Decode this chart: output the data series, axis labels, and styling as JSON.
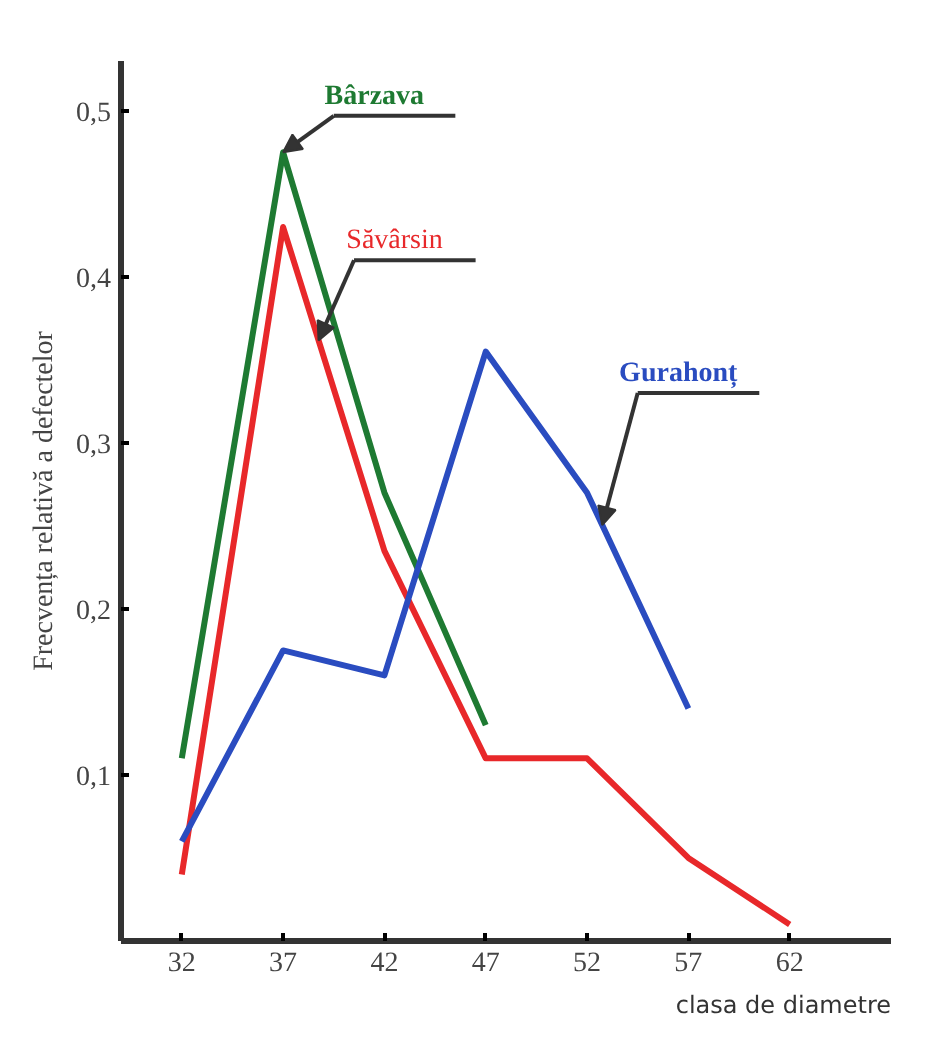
{
  "chart_data": {
    "type": "line",
    "xlabel": "clasa de diametre",
    "ylabel": "Frecvența relativă a defectelor",
    "x": [
      32,
      37,
      42,
      47,
      52,
      57,
      62
    ],
    "series": [
      {
        "name": "Bârzava",
        "color": "#1e7a32",
        "values": [
          0.11,
          0.475,
          0.27,
          0.13,
          null,
          null,
          null
        ]
      },
      {
        "name": "Săvârsin",
        "color": "#e8282a",
        "values": [
          0.04,
          0.43,
          0.235,
          0.11,
          0.11,
          0.05,
          0.01
        ]
      },
      {
        "name": "Gurahonț",
        "color": "#2a4cc0",
        "values": [
          0.06,
          0.175,
          0.16,
          0.355,
          0.27,
          0.14,
          null
        ]
      }
    ],
    "xlim": [
      29,
      67
    ],
    "ylim": [
      0,
      0.53
    ],
    "xticks": [
      32,
      37,
      42,
      47,
      52,
      57,
      62
    ],
    "yticks": [
      {
        "value": 0.1,
        "label": "0,1"
      },
      {
        "value": 0.2,
        "label": "0,2"
      },
      {
        "value": 0.3,
        "label": "0,3"
      },
      {
        "value": 0.4,
        "label": "0,4"
      },
      {
        "value": 0.5,
        "label": "0,5"
      }
    ],
    "grid": false,
    "marker": "none",
    "line_style": "solid"
  }
}
